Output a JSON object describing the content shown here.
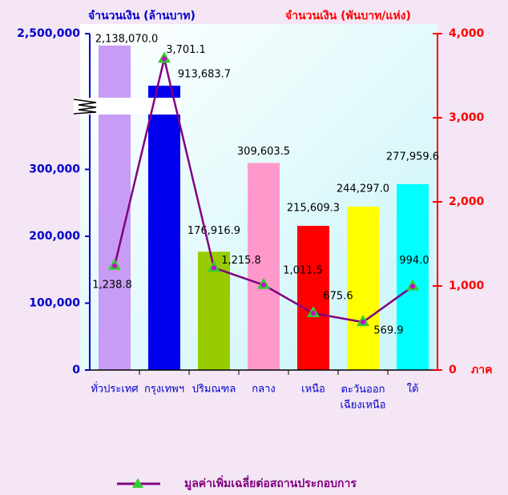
{
  "chart_data": {
    "type": "bar",
    "y_title": "จำนวนเงิน (ล้านบาท)",
    "y2_title": "จำนวนเงิน (พันบาท/แห่ง)",
    "x_title": "ภาค",
    "categories": [
      "ทั่วประเทศ",
      "กรุงเทพฯ",
      "ปริมณฑล",
      "กลาง",
      "เหนือ",
      "ตะวันออก\nเฉียงเหนือ",
      "ใต้"
    ],
    "bars": {
      "colors": [
        "#c89cf4",
        "#0000ee",
        "#99cc00",
        "#ff99cc",
        "#ff0000",
        "#ffff00",
        "#00ffff"
      ],
      "values": [
        2138070.0,
        913683.7,
        176916.9,
        309603.5,
        215609.3,
        244297.0,
        277959.6
      ],
      "value_labels": [
        "2,138,070.0",
        "913,683.7",
        "176,916.9",
        "309,603.5",
        "215,609.3",
        "244,297.0",
        "277,959.6"
      ]
    },
    "series": [
      {
        "name": "มูลค่าเพิ่มเฉลี่ยต่อสถานประกอบการ",
        "color": "#800080",
        "marker_color": "#33cc33",
        "axis": "y2",
        "values": [
          1238.8,
          3701.1,
          1215.8,
          1011.5,
          675.6,
          569.9,
          994.0
        ],
        "value_labels": [
          "1,238.8",
          "3,701.1",
          "1,215.8",
          "1,011.5",
          "675.6",
          "569.9",
          "994.0"
        ]
      }
    ],
    "ylim": [
      0,
      2500000
    ],
    "y_break": 400000,
    "yticks": [
      {
        "value": 0,
        "label": "0"
      },
      {
        "value": 100000,
        "label": "100,000"
      },
      {
        "value": 200000,
        "label": "200,000"
      },
      {
        "value": 300000,
        "label": "300,000"
      },
      {
        "value": 2500000,
        "label": "2,500,000"
      }
    ],
    "y2lim": [
      0,
      4000
    ],
    "y2ticks": [
      {
        "value": 0,
        "label": "0"
      },
      {
        "value": 1000,
        "label": "1,000"
      },
      {
        "value": 2000,
        "label": "2,000"
      },
      {
        "value": 3000,
        "label": "3,000"
      },
      {
        "value": 4000,
        "label": "4,000"
      }
    ]
  }
}
